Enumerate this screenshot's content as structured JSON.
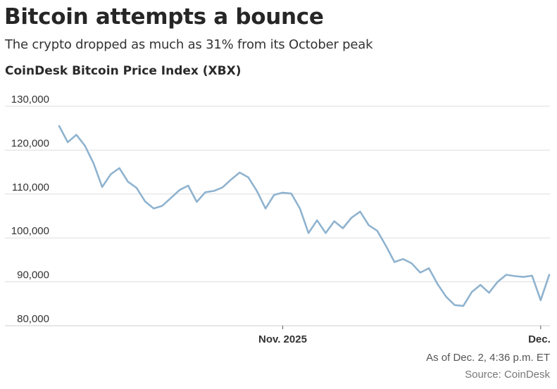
{
  "header": {
    "title": "Bitcoin attempts a bounce",
    "subtitle": "The crypto dropped as much as 31% from its October peak",
    "chart_label": "CoinDesk Bitcoin Price Index (XBX)"
  },
  "footer": {
    "as_of": "As of Dec. 2, 4:36 p.m. ET",
    "source": "Source: CoinDesk"
  },
  "colors": {
    "line": "#8fb3cf",
    "grid": "#dddddd",
    "baseline": "#cfcfcf"
  },
  "chart_data": {
    "type": "line",
    "title": "Bitcoin attempts a bounce",
    "subtitle": "The crypto dropped as much as 31% from its October peak",
    "series_label": "CoinDesk Bitcoin Price Index (XBX)",
    "xlabel": "",
    "ylabel": "",
    "ylim": [
      80000,
      130000
    ],
    "yticks": [
      {
        "value": 130000,
        "label": "130,000"
      },
      {
        "value": 120000,
        "label": "120,000"
      },
      {
        "value": 110000,
        "label": "110,000"
      },
      {
        "value": 100000,
        "label": "100,000"
      },
      {
        "value": 90000,
        "label": "90,000"
      },
      {
        "value": 80000,
        "label": "80,000"
      }
    ],
    "xticks": [
      {
        "index": 26,
        "label": "Nov. 2025"
      },
      {
        "index": 56,
        "label": "Dec."
      }
    ],
    "grid": true,
    "legend": "none",
    "series": [
      {
        "name": "XBX",
        "values": [
          125500,
          121800,
          123500,
          121000,
          117000,
          111600,
          114500,
          115900,
          112800,
          111400,
          108300,
          106700,
          107300,
          109100,
          110900,
          111900,
          108200,
          110400,
          110700,
          111500,
          113300,
          114900,
          113800,
          110700,
          106700,
          109800,
          110300,
          110100,
          106700,
          101100,
          104000,
          101100,
          103800,
          102200,
          104600,
          106000,
          102900,
          101600,
          98200,
          94500,
          95200,
          94200,
          92100,
          93100,
          89500,
          86600,
          84700,
          84500,
          87700,
          89300,
          87500,
          90000,
          91600,
          91300,
          91100,
          91400,
          85800,
          91600
        ]
      }
    ]
  }
}
